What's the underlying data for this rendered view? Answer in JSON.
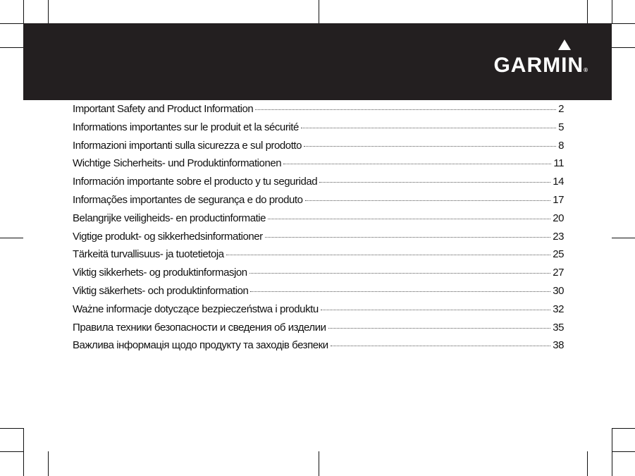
{
  "brand": {
    "logo_text": "GARMIN",
    "registered": "®"
  },
  "colors": {
    "band": "#231f20",
    "text": "#111111"
  },
  "toc": [
    {
      "title": "Important Safety and Product Information",
      "page": "2"
    },
    {
      "title": "Informations importantes sur le produit et la sécurité",
      "page": "5"
    },
    {
      "title": "Informazioni importanti sulla sicurezza e sul prodotto",
      "page": "8"
    },
    {
      "title": "Wichtige Sicherheits- und Produktinformationen",
      "page": "11"
    },
    {
      "title": "Información importante sobre el producto y tu seguridad",
      "page": "14"
    },
    {
      "title": "Informações importantes de segurança e do produto",
      "page": "17"
    },
    {
      "title": "Belangrijke veiligheids- en productinformatie",
      "page": "20"
    },
    {
      "title": "Vigtige produkt- og sikkerhedsinformationer",
      "page": "23"
    },
    {
      "title": "Tärkeitä turvallisuus- ja tuotetietoja",
      "page": "25"
    },
    {
      "title": "Viktig sikkerhets- og produktinformasjon",
      "page": "27"
    },
    {
      "title": "Viktig säkerhets- och produktinformation",
      "page": "30"
    },
    {
      "title": "Ważne informacje dotyczące bezpieczeństwa i produktu",
      "page": "32"
    },
    {
      "title": "Правила техники безопасности и сведения об изделии",
      "page": "35"
    },
    {
      "title": "Важлива інформація щодо продукту та заходів безпеки",
      "page": "38"
    }
  ]
}
